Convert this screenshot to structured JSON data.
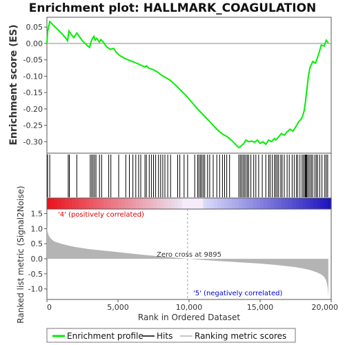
{
  "title": "Enrichment plot: HALLMARK_COAGULATION",
  "colors": {
    "profile": "#00ee00",
    "hits": "#000000",
    "metric": "#b4b4b4",
    "positive_label": "#dd0000",
    "negative_label": "#0000dd",
    "zero_line": "#9a9a9a"
  },
  "chart_data": [
    {
      "type": "line",
      "name": "enrichment-profile",
      "ylabel": "Enrichment score (ES)",
      "xlim": [
        0,
        20000
      ],
      "ylim": [
        -0.335,
        0.08
      ],
      "yticks": [
        0.05,
        0.0,
        -0.05,
        -0.1,
        -0.15,
        -0.2,
        -0.25,
        -0.3
      ],
      "ytick_labels": [
        "0.05",
        "0.00",
        "-0.05",
        "-0.10",
        "-0.15",
        "-0.20",
        "-0.25",
        "-0.30"
      ],
      "x": [
        0,
        60,
        200,
        400,
        700,
        1000,
        1300,
        1450,
        1550,
        1700,
        1900,
        2100,
        2300,
        2500,
        2800,
        3000,
        3100,
        3200,
        3300,
        3400,
        3500,
        3700,
        3800,
        4000,
        4200,
        4450,
        4700,
        4900,
        5100,
        5400,
        5700,
        6000,
        6300,
        6600,
        6900,
        7000,
        7200,
        7500,
        7800,
        8000,
        8300,
        8600,
        9000,
        9400,
        9800,
        10200,
        10600,
        11000,
        11400,
        11800,
        12100,
        12400,
        12700,
        13000,
        13300,
        13500,
        13700,
        13850,
        14000,
        14200,
        14400,
        14600,
        14800,
        15000,
        15200,
        15400,
        15600,
        15800,
        16000,
        16100,
        16300,
        16500,
        16700,
        16900,
        17100,
        17300,
        17500,
        17700,
        17900,
        18000,
        18100,
        18200,
        18300,
        18400,
        18500,
        18700,
        18900,
        19100,
        19300,
        19500,
        19650,
        19800
      ],
      "y": [
        0.0,
        0.038,
        0.067,
        0.058,
        0.045,
        0.032,
        0.018,
        0.008,
        0.038,
        0.028,
        0.018,
        0.032,
        0.02,
        0.008,
        -0.005,
        -0.012,
        0.005,
        0.015,
        0.022,
        0.01,
        0.016,
        0.004,
        0.012,
        0.002,
        -0.01,
        -0.018,
        -0.015,
        -0.028,
        -0.036,
        -0.044,
        -0.05,
        -0.055,
        -0.06,
        -0.066,
        -0.072,
        -0.068,
        -0.076,
        -0.08,
        -0.088,
        -0.095,
        -0.103,
        -0.11,
        -0.125,
        -0.142,
        -0.16,
        -0.18,
        -0.2,
        -0.218,
        -0.236,
        -0.255,
        -0.268,
        -0.278,
        -0.285,
        -0.296,
        -0.31,
        -0.318,
        -0.312,
        -0.305,
        -0.295,
        -0.3,
        -0.298,
        -0.302,
        -0.295,
        -0.305,
        -0.3,
        -0.308,
        -0.295,
        -0.3,
        -0.29,
        -0.295,
        -0.285,
        -0.275,
        -0.28,
        -0.27,
        -0.262,
        -0.268,
        -0.255,
        -0.24,
        -0.23,
        -0.22,
        -0.205,
        -0.175,
        -0.135,
        -0.1,
        -0.075,
        -0.055,
        -0.06,
        -0.035,
        -0.005,
        -0.008,
        0.01,
        0.002
      ]
    },
    {
      "type": "scatter",
      "name": "hits",
      "xlim": [
        0,
        20000
      ],
      "x": [
        45,
        200,
        1500,
        1580,
        2100,
        3050,
        3150,
        3250,
        3350,
        3450,
        3700,
        3850,
        4350,
        4500,
        5050,
        5550,
        5800,
        6050,
        6250,
        6450,
        6600,
        6900,
        7000,
        7200,
        7350,
        7500,
        7650,
        7850,
        8000,
        8150,
        8300,
        8500,
        8700,
        9200,
        9350,
        9650,
        9900,
        10400,
        10600,
        10700,
        10800,
        10900,
        11000,
        11100,
        11300,
        11450,
        11700,
        11950,
        12150,
        12350,
        12500,
        12650,
        12850,
        13500,
        13600,
        13700,
        13800,
        13900,
        14000,
        14100,
        14200,
        14350,
        14550,
        14700,
        14900,
        15150,
        15400,
        15600,
        15700,
        15850,
        16000,
        16100,
        16200,
        16300,
        16450,
        16550,
        16700,
        16900,
        17050,
        17250,
        17400,
        17550,
        17650,
        17800,
        17950,
        18050,
        18150,
        18200,
        18250,
        18300,
        18400,
        18500,
        18600,
        18700,
        18850,
        18950,
        19050,
        19200,
        19350,
        19550,
        19650,
        19750
      ]
    },
    {
      "type": "area",
      "name": "ranking-metric",
      "xlabel": "Rank in Ordered Dataset",
      "ylabel": "Ranked list metric (Signal2Noise)",
      "xlim": [
        0,
        20000
      ],
      "ylim": [
        -1.35,
        1.65
      ],
      "yticks": [
        1.5,
        1.0,
        0.5,
        0.0,
        -0.5,
        -1.0
      ],
      "ytick_labels": [
        "1.5",
        "1.0",
        "0.5",
        "0.0",
        "-0.5",
        "-1.0"
      ],
      "xticks": [
        0,
        5000,
        10000,
        15000,
        20000
      ],
      "xtick_labels": [
        "0",
        "5,000",
        "10,000",
        "15,000",
        "20,000"
      ],
      "x": [
        0,
        30,
        100,
        250,
        500,
        1000,
        1500,
        2000,
        3000,
        4000,
        5000,
        6000,
        7000,
        8000,
        9000,
        9895,
        11000,
        12000,
        13000,
        14000,
        15000,
        16000,
        17000,
        17500,
        18000,
        18500,
        19000,
        19300,
        19500,
        19650,
        19750,
        19800
      ],
      "y": [
        1.1,
        0.95,
        0.8,
        0.68,
        0.58,
        0.5,
        0.44,
        0.39,
        0.32,
        0.27,
        0.22,
        0.17,
        0.12,
        0.08,
        0.04,
        0.0,
        -0.04,
        -0.07,
        -0.1,
        -0.13,
        -0.16,
        -0.2,
        -0.25,
        -0.28,
        -0.32,
        -0.37,
        -0.45,
        -0.52,
        -0.6,
        -0.72,
        -0.95,
        -1.25
      ],
      "annotations": {
        "zero_cross": "Zero cross at 9895",
        "positive": "'4' (positively correlated)",
        "negative": "'5' (negatively correlated)"
      }
    }
  ],
  "legend": {
    "items": [
      {
        "label": "Enrichment profile",
        "color": "#00ee00"
      },
      {
        "label": "Hits",
        "color": "#000000"
      },
      {
        "label": "Ranking metric scores",
        "color": "#b4b4b4"
      }
    ]
  }
}
